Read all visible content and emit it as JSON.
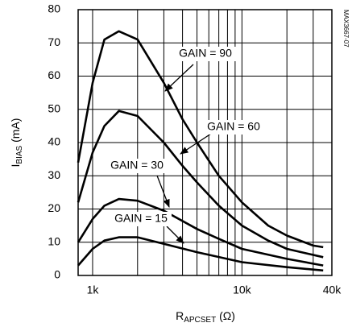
{
  "chart_data": {
    "type": "line",
    "x_label": [
      "R",
      "APCSET",
      " (Ω)"
    ],
    "y_label": [
      "I",
      "BIAS",
      " (mA)"
    ],
    "figure_id": "MAX3667-07",
    "xlog": true,
    "xlim": [
      800,
      40000
    ],
    "ylim": [
      0,
      80
    ],
    "xticks": [
      {
        "value": 1000,
        "label": "1k"
      },
      {
        "value": 10000,
        "label": "10k"
      },
      {
        "value": 40000,
        "label": "40k"
      }
    ],
    "x_minor_ticks": [
      2000,
      3000,
      4000,
      5000,
      6000,
      7000,
      8000,
      9000,
      20000,
      30000
    ],
    "yticks": [
      0,
      10,
      20,
      30,
      40,
      50,
      60,
      70,
      80
    ],
    "grid": true,
    "series": [
      {
        "name": "GAIN = 90",
        "color": "#000000",
        "x": [
          800,
          1000,
          1200,
          1500,
          2000,
          3000,
          4000,
          5000,
          7000,
          10000,
          15000,
          20000,
          30000,
          35000
        ],
        "values": [
          34,
          58,
          71,
          73.5,
          71,
          58,
          47,
          40,
          30,
          22,
          15,
          12,
          9,
          8.5
        ]
      },
      {
        "name": "GAIN = 60",
        "color": "#000000",
        "x": [
          800,
          1000,
          1200,
          1500,
          2000,
          3000,
          4000,
          5000,
          7000,
          10000,
          15000,
          20000,
          35000
        ],
        "values": [
          22,
          37,
          45,
          49.5,
          48,
          40,
          33,
          28,
          21,
          15,
          10.5,
          8,
          5.5
        ]
      },
      {
        "name": "GAIN = 30",
        "color": "#000000",
        "x": [
          800,
          1000,
          1200,
          1500,
          2000,
          3000,
          5000,
          7000,
          10000,
          20000,
          35000
        ],
        "values": [
          10,
          17,
          21,
          23,
          22.5,
          19.5,
          14,
          11,
          8,
          5,
          3
        ]
      },
      {
        "name": "GAIN = 15",
        "color": "#000000",
        "x": [
          800,
          1000,
          1200,
          1500,
          2000,
          3000,
          5000,
          10000,
          20000,
          35000
        ],
        "values": [
          3,
          8,
          10.5,
          11.5,
          11.5,
          9.5,
          7,
          4,
          2.5,
          1.5
        ]
      }
    ]
  }
}
